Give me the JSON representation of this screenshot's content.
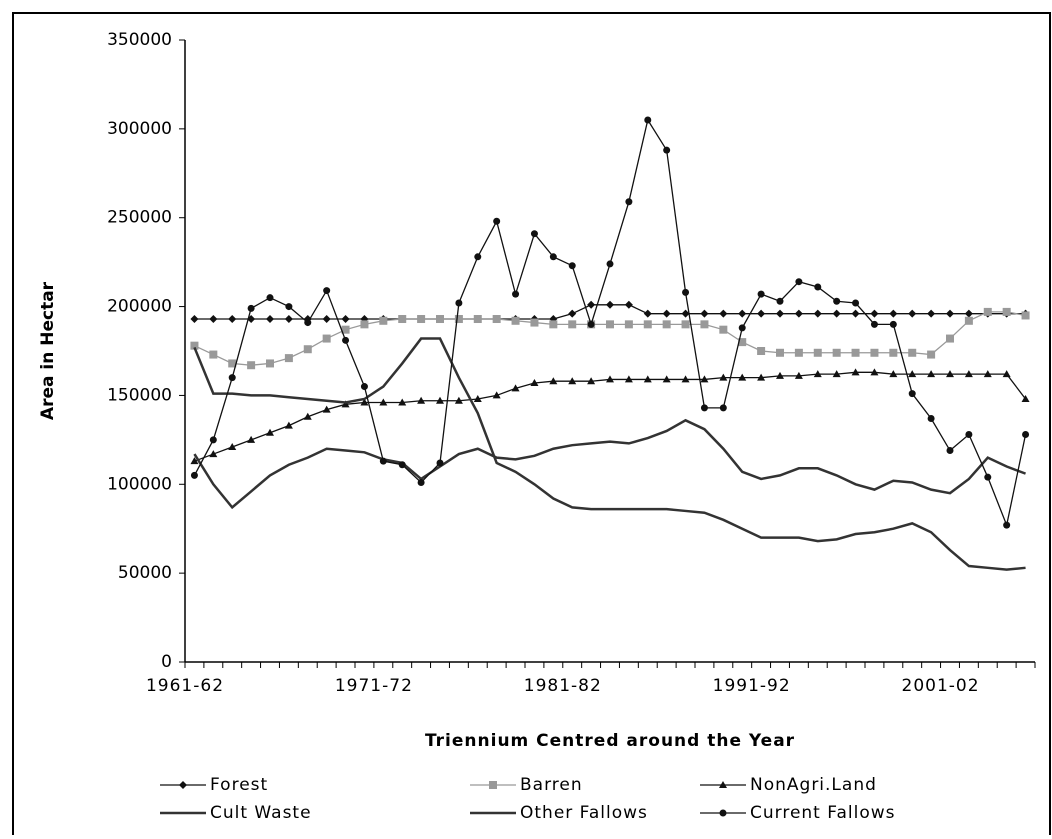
{
  "chart_data": {
    "type": "line",
    "y_label": "Area in Hectar",
    "x_label": "Triennium Centred around the Year",
    "categories": [
      "1961-62",
      null,
      null,
      null,
      null,
      null,
      null,
      null,
      null,
      null,
      "1971-72",
      null,
      null,
      null,
      null,
      null,
      null,
      null,
      null,
      null,
      "1981-82",
      null,
      null,
      null,
      null,
      null,
      null,
      null,
      null,
      null,
      "1991-92",
      null,
      null,
      null,
      null,
      null,
      null,
      null,
      null,
      null,
      "2001-02",
      null,
      null,
      null,
      null
    ],
    "ylim": [
      0,
      350000
    ],
    "yticks": [
      0,
      50000,
      100000,
      150000,
      200000,
      250000,
      300000,
      350000
    ],
    "series": [
      {
        "name": "Forest",
        "color": "#111111",
        "marker": "diamond",
        "values": [
          193000,
          193000,
          193000,
          193000,
          193000,
          193000,
          193000,
          193000,
          193000,
          193000,
          193000,
          193000,
          193000,
          193000,
          193000,
          193000,
          193000,
          193000,
          193000,
          193000,
          196000,
          201000,
          201000,
          201000,
          196000,
          196000,
          196000,
          196000,
          196000,
          196000,
          196000,
          196000,
          196000,
          196000,
          196000,
          196000,
          196000,
          196000,
          196000,
          196000,
          196000,
          196000,
          196000,
          196000,
          196000
        ]
      },
      {
        "name": "Barren",
        "color": "#999999",
        "marker": "square",
        "values": [
          178000,
          173000,
          168000,
          167000,
          168000,
          171000,
          176000,
          182000,
          187000,
          190000,
          192000,
          193000,
          193000,
          193000,
          193000,
          193000,
          193000,
          192000,
          191000,
          190000,
          190000,
          190000,
          190000,
          190000,
          190000,
          190000,
          190000,
          190000,
          187000,
          180000,
          175000,
          174000,
          174000,
          174000,
          174000,
          174000,
          174000,
          174000,
          174000,
          173000,
          182000,
          192000,
          197000,
          197000,
          195000
        ]
      },
      {
        "name": "NonAgri.Land",
        "color": "#111111",
        "marker": "triangle",
        "values": [
          113000,
          117000,
          121000,
          125000,
          129000,
          133000,
          138000,
          142000,
          145000,
          146000,
          146000,
          146000,
          147000,
          147000,
          147000,
          148000,
          150000,
          154000,
          157000,
          158000,
          158000,
          158000,
          159000,
          159000,
          159000,
          159000,
          159000,
          159000,
          160000,
          160000,
          160000,
          161000,
          161000,
          162000,
          162000,
          163000,
          163000,
          162000,
          162000,
          162000,
          162000,
          162000,
          162000,
          162000,
          148000
        ]
      },
      {
        "name": "Cult Waste",
        "color": "#333333",
        "marker": "none",
        "values": [
          177000,
          151000,
          151000,
          150000,
          150000,
          149000,
          148000,
          147000,
          146000,
          148000,
          155000,
          168000,
          182000,
          182000,
          160000,
          140000,
          112000,
          107000,
          100000,
          92000,
          87000,
          86000,
          86000,
          86000,
          86000,
          86000,
          85000,
          84000,
          80000,
          75000,
          70000,
          70000,
          70000,
          68000,
          69000,
          72000,
          73000,
          75000,
          78000,
          73000,
          63000,
          54000,
          53000,
          52000,
          53000
        ]
      },
      {
        "name": "Other Fallows",
        "color": "#333333",
        "marker": "none",
        "values": [
          117000,
          100000,
          87000,
          96000,
          105000,
          111000,
          115000,
          120000,
          119000,
          118000,
          114000,
          112000,
          103000,
          110000,
          117000,
          120000,
          115000,
          114000,
          116000,
          120000,
          122000,
          123000,
          124000,
          123000,
          126000,
          130000,
          136000,
          131000,
          120000,
          107000,
          103000,
          105000,
          109000,
          109000,
          105000,
          100000,
          97000,
          102000,
          101000,
          97000,
          95000,
          103000,
          115000,
          110000,
          106000
        ]
      },
      {
        "name": "Current Fallows",
        "color": "#111111",
        "marker": "dot",
        "values": [
          105000,
          125000,
          160000,
          199000,
          205000,
          200000,
          191000,
          209000,
          181000,
          155000,
          113000,
          111000,
          101000,
          112000,
          202000,
          228000,
          248000,
          207000,
          241000,
          228000,
          223000,
          190000,
          224000,
          259000,
          305000,
          288000,
          208000,
          143000,
          143000,
          188000,
          207000,
          203000,
          214000,
          211000,
          203000,
          202000,
          190000,
          190000,
          151000,
          137000,
          119000,
          128000,
          104000,
          77000,
          128000
        ]
      }
    ]
  }
}
